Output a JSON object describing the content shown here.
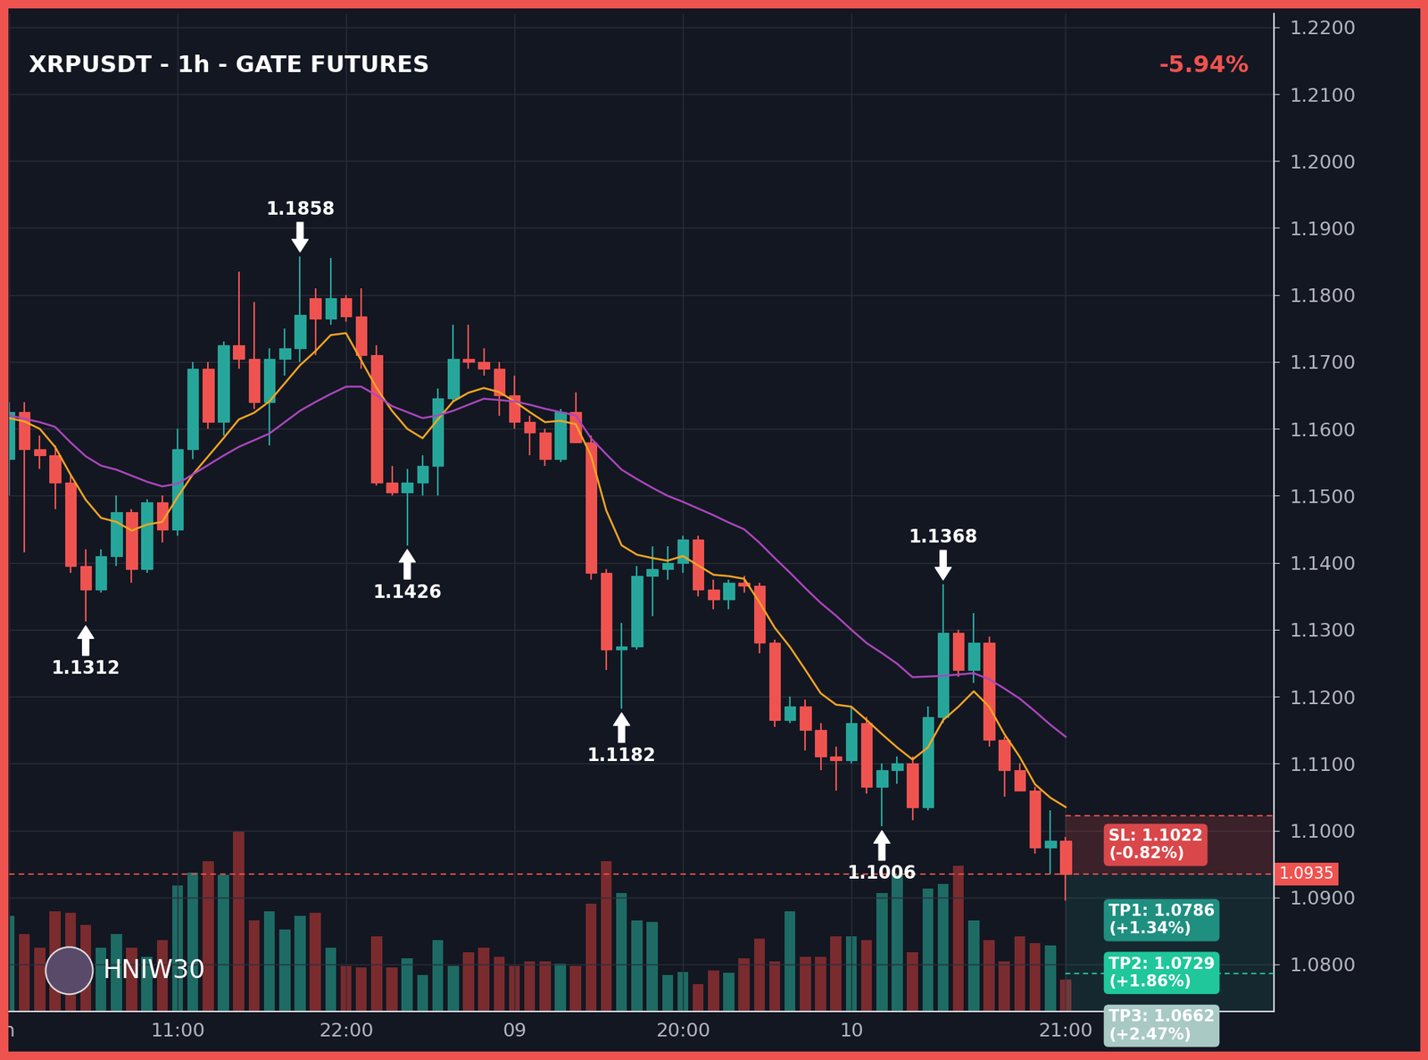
{
  "chart_data": {
    "type": "candlestick",
    "title": "XRPUSDT - 1h - GATE FUTURES",
    "change_label": "-5.94%",
    "watermark": "HNIW30",
    "categories": [
      "n",
      null,
      null,
      null,
      null,
      null,
      null,
      null,
      null,
      null,
      null,
      "11:00",
      null,
      null,
      null,
      null,
      null,
      null,
      null,
      null,
      null,
      null,
      "22:00",
      null,
      null,
      null,
      null,
      null,
      null,
      null,
      null,
      null,
      null,
      "09",
      null,
      null,
      null,
      null,
      null,
      null,
      null,
      null,
      null,
      null,
      "20:00",
      null,
      null,
      null,
      null,
      null,
      null,
      null,
      null,
      null,
      null,
      "10",
      null,
      null,
      null,
      null,
      null,
      null,
      null,
      null,
      null,
      null,
      null,
      null,
      null,
      "21:00"
    ],
    "open": [
      1.1555,
      1.1625,
      1.157,
      1.156,
      1.152,
      1.1395,
      1.136,
      1.141,
      1.1475,
      1.139,
      1.149,
      1.145,
      1.157,
      1.169,
      1.161,
      1.1725,
      1.1705,
      1.164,
      1.1705,
      1.172,
      1.1795,
      1.1765,
      1.1795,
      1.1768,
      1.171,
      1.152,
      1.1505,
      1.152,
      1.1545,
      1.1645,
      1.1705,
      1.17,
      1.169,
      1.165,
      1.161,
      1.1595,
      1.1555,
      1.1625,
      1.158,
      1.1385,
      1.127,
      1.1275,
      1.138,
      1.139,
      1.14,
      1.1435,
      1.136,
      1.1345,
      1.137,
      1.1365,
      1.128,
      1.1165,
      1.1185,
      1.115,
      1.111,
      1.1105,
      1.116,
      1.1065,
      1.109,
      1.11,
      1.1035,
      1.117,
      1.1295,
      1.124,
      1.128,
      1.1135,
      1.109,
      1.106,
      1.0975,
      1.0985
    ],
    "high": [
      1.164,
      1.164,
      1.159,
      1.1575,
      1.153,
      1.142,
      1.142,
      1.15,
      1.148,
      1.1495,
      1.15,
      1.16,
      1.17,
      1.17,
      1.173,
      1.1835,
      1.179,
      1.172,
      1.175,
      1.1858,
      1.181,
      1.1855,
      1.18,
      1.181,
      1.1725,
      1.1545,
      1.154,
      1.156,
      1.166,
      1.1755,
      1.1755,
      1.172,
      1.17,
      1.168,
      1.162,
      1.16,
      1.163,
      1.1655,
      1.159,
      1.139,
      1.131,
      1.1395,
      1.1425,
      1.1425,
      1.144,
      1.144,
      1.1375,
      1.1375,
      1.138,
      1.137,
      1.1285,
      1.12,
      1.1195,
      1.116,
      1.1125,
      1.1185,
      1.117,
      1.11,
      1.111,
      1.111,
      1.1185,
      1.1368,
      1.13,
      1.1325,
      1.129,
      1.114,
      1.11,
      1.1065,
      1.103,
      1.099
    ],
    "low": [
      1.15,
      1.1416,
      1.154,
      1.148,
      1.1385,
      1.1312,
      1.1355,
      1.1395,
      1.137,
      1.1385,
      1.143,
      1.144,
      1.1555,
      1.16,
      1.159,
      1.169,
      1.163,
      1.1575,
      1.168,
      1.17,
      1.171,
      1.1755,
      1.176,
      1.169,
      1.1515,
      1.15,
      1.1426,
      1.15,
      1.15,
      1.164,
      1.169,
      1.168,
      1.162,
      1.16,
      1.156,
      1.1545,
      1.155,
      1.158,
      1.1375,
      1.124,
      1.1182,
      1.127,
      1.132,
      1.1375,
      1.1385,
      1.135,
      1.133,
      1.133,
      1.1355,
      1.1265,
      1.1155,
      1.116,
      1.112,
      1.109,
      1.106,
      1.11,
      1.1055,
      1.1006,
      1.107,
      1.1015,
      1.103,
      1.116,
      1.123,
      1.122,
      1.1125,
      1.105,
      1.106,
      1.0965,
      1.0935,
      1.0895
    ],
    "close": [
      1.1625,
      1.157,
      1.156,
      1.152,
      1.1395,
      1.136,
      1.141,
      1.1475,
      1.139,
      1.149,
      1.145,
      1.157,
      1.169,
      1.161,
      1.1725,
      1.1705,
      1.164,
      1.1705,
      1.172,
      1.177,
      1.1765,
      1.1795,
      1.1768,
      1.171,
      1.152,
      1.1505,
      1.152,
      1.1545,
      1.1645,
      1.1705,
      1.17,
      1.169,
      1.165,
      1.161,
      1.1595,
      1.1555,
      1.1625,
      1.158,
      1.1385,
      1.127,
      1.1275,
      1.138,
      1.139,
      1.14,
      1.1435,
      1.136,
      1.1345,
      1.137,
      1.1365,
      1.128,
      1.1165,
      1.1185,
      1.115,
      1.111,
      1.1105,
      1.116,
      1.1065,
      1.109,
      1.11,
      1.1035,
      1.117,
      1.1295,
      1.124,
      1.128,
      1.1135,
      1.109,
      1.106,
      1.0975,
      1.0985,
      1.0935
    ],
    "up_color": "#26a69a",
    "down_color": "#ef5350",
    "overlays": [
      {
        "color": "#f5a623",
        "values": [
          1.1616,
          1.1611,
          1.16,
          1.1573,
          1.1532,
          1.1494,
          1.1467,
          1.1461,
          1.1448,
          1.1457,
          1.1461,
          1.1498,
          1.1532,
          1.1559,
          1.1586,
          1.1614,
          1.1624,
          1.1641,
          1.1668,
          1.1695,
          1.1716,
          1.174,
          1.1743,
          1.1702,
          1.1661,
          1.1627,
          1.16,
          1.1586,
          1.1614,
          1.1641,
          1.1654,
          1.1661,
          1.1655,
          1.1641,
          1.1625,
          1.161,
          1.1612,
          1.1607,
          1.156,
          1.1478,
          1.1426,
          1.1412,
          1.1407,
          1.1403,
          1.141,
          1.1396,
          1.1382,
          1.138,
          1.1376,
          1.1341,
          1.1303,
          1.1274,
          1.124,
          1.1205,
          1.1188,
          1.1185,
          1.1165,
          1.1144,
          1.1124,
          1.1106,
          1.1124,
          1.1165,
          1.1185,
          1.1208,
          1.1185,
          1.1144,
          1.111,
          1.1069,
          1.1049,
          1.1035
        ]
      },
      {
        "color": "#ab47bc",
        "values": [
          1.162,
          1.1615,
          1.161,
          1.1603,
          1.158,
          1.1559,
          1.1545,
          1.1539,
          1.153,
          1.1521,
          1.1514,
          1.1518,
          1.1532,
          1.1546,
          1.156,
          1.1573,
          1.1583,
          1.1593,
          1.161,
          1.1627,
          1.164,
          1.1652,
          1.1663,
          1.1663,
          1.165,
          1.1634,
          1.1625,
          1.1616,
          1.162,
          1.1627,
          1.1636,
          1.1645,
          1.1643,
          1.1641,
          1.1636,
          1.163,
          1.1625,
          1.162,
          1.1586,
          1.1562,
          1.1539,
          1.1525,
          1.1512,
          1.15,
          1.1491,
          1.1481,
          1.1471,
          1.146,
          1.145,
          1.143,
          1.1407,
          1.1385,
          1.1362,
          1.134,
          1.1321,
          1.13,
          1.128,
          1.1265,
          1.1249,
          1.1229,
          1.123,
          1.1231,
          1.1233,
          1.1235,
          1.1226,
          1.1212,
          1.1197,
          1.1178,
          1.1158,
          1.114
        ]
      }
    ],
    "volume": [
      105,
      85,
      70,
      110,
      108,
      95,
      70,
      85,
      70,
      60,
      78,
      138,
      152,
      165,
      150,
      198,
      100,
      110,
      90,
      105,
      108,
      70,
      50,
      48,
      82,
      48,
      58,
      40,
      78,
      50,
      65,
      70,
      60,
      50,
      55,
      55,
      52,
      50,
      118,
      165,
      130,
      100,
      98,
      40,
      43,
      30,
      45,
      42,
      58,
      80,
      55,
      110,
      60,
      60,
      82,
      82,
      78,
      130,
      150,
      65,
      135,
      140,
      160,
      100,
      78,
      55,
      82,
      75,
      72,
      35
    ],
    "y2lim": [
      0,
      1095
    ],
    "y2ticks": [],
    "annotations": [
      {
        "x": 5,
        "y": 1.1312
      },
      {
        "x": 19,
        "y": 1.1858
      },
      {
        "x": 26,
        "y": 1.1426
      },
      {
        "x": 40,
        "y": 1.1182
      },
      {
        "x": 57,
        "y": 1.1006
      },
      {
        "x": 61,
        "y": 1.1368
      }
    ],
    "levels": {
      "current": 1.0935,
      "stop_loss": {
        "label": "SL: 1.1022",
        "value": 1.1022,
        "change": "(-0.82%)"
      },
      "take_profits": [
        {
          "label": "TP1: 1.0786",
          "value": 1.0786,
          "change": "(+1.34%)"
        },
        {
          "label": "TP2: 1.0729",
          "value": 1.0729,
          "change": "(+1.86%)"
        },
        {
          "label": "TP3: 1.0662",
          "value": 1.0662,
          "change": "(+2.47%)"
        }
      ]
    },
    "xlim": [
      0,
      82.6
    ],
    "ylim": [
      1.073,
      1.222
    ],
    "yticks": [
      {
        "value": 1.08,
        "label": "1.0800"
      },
      {
        "value": 1.09,
        "label": "1.0900"
      },
      {
        "value": 1.1,
        "label": "1.1000"
      },
      {
        "value": 1.11,
        "label": "1.1100"
      },
      {
        "value": 1.12,
        "label": "1.1200"
      },
      {
        "value": 1.13,
        "label": "1.1300"
      },
      {
        "value": 1.14,
        "label": "1.1400"
      },
      {
        "value": 1.15,
        "label": "1.1500"
      },
      {
        "value": 1.16,
        "label": "1.1600"
      },
      {
        "value": 1.17,
        "label": "1.1700"
      },
      {
        "value": 1.18,
        "label": "1.1800"
      },
      {
        "value": 1.19,
        "label": "1.1900"
      },
      {
        "value": 1.2,
        "label": "1.2000"
      },
      {
        "value": 1.21,
        "label": "1.2100"
      },
      {
        "value": 1.22,
        "label": "1.2200"
      }
    ],
    "grid": true
  }
}
